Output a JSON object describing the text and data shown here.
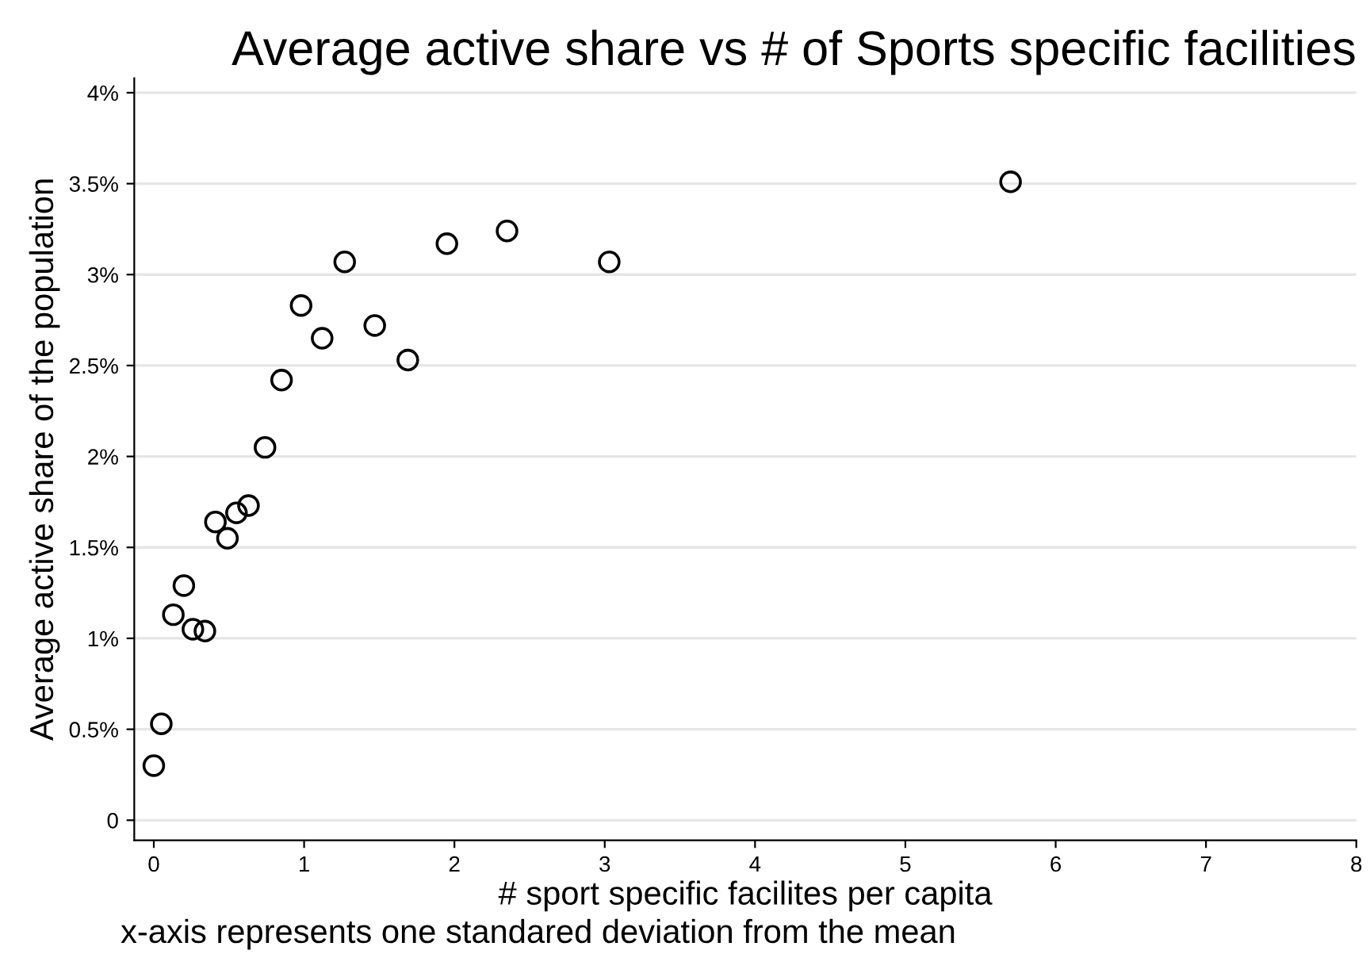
{
  "chart_data": {
    "type": "scatter",
    "title": "Average active share vs # of Sports specific facilities",
    "xlabel": "# sport specific facilites per capita",
    "ylabel": "Average active share of the population",
    "annotations": [
      "x-axis represents one standared deviation from the mean"
    ],
    "x": [
      0,
      0.05,
      0.13,
      0.2,
      0.26,
      0.34,
      0.41,
      0.49,
      0.55,
      0.63,
      0.74,
      0.85,
      0.98,
      1.12,
      1.27,
      1.47,
      1.69,
      1.95,
      2.35,
      3.03,
      5.7
    ],
    "series": [
      {
        "color": "#000000",
        "values": [
          0.3,
          0.53,
          1.13,
          1.29,
          1.05,
          1.04,
          1.64,
          1.55,
          1.69,
          1.73,
          2.05,
          2.42,
          2.83,
          2.65,
          3.07,
          2.72,
          2.53,
          3.17,
          3.24,
          3.07,
          3.51
        ]
      }
    ],
    "xlim": [
      -0.13,
      8
    ],
    "ylim": [
      -0.11,
      4.08
    ],
    "xticks": [
      0,
      1,
      2,
      3,
      4,
      5,
      6,
      7,
      8
    ],
    "yticks": [
      0,
      {
        "value": 0.5,
        "label": "0.5%"
      },
      {
        "value": 1,
        "label": "1%"
      },
      {
        "value": 1.5,
        "label": "1.5%"
      },
      {
        "value": 2,
        "label": "2%"
      },
      {
        "value": 2.5,
        "label": "2.5%"
      },
      {
        "value": 3,
        "label": "3%"
      },
      {
        "value": 3.5,
        "label": "3.5%"
      },
      {
        "value": 4,
        "label": "4%"
      }
    ],
    "grid": "y",
    "marker": "circle"
  }
}
